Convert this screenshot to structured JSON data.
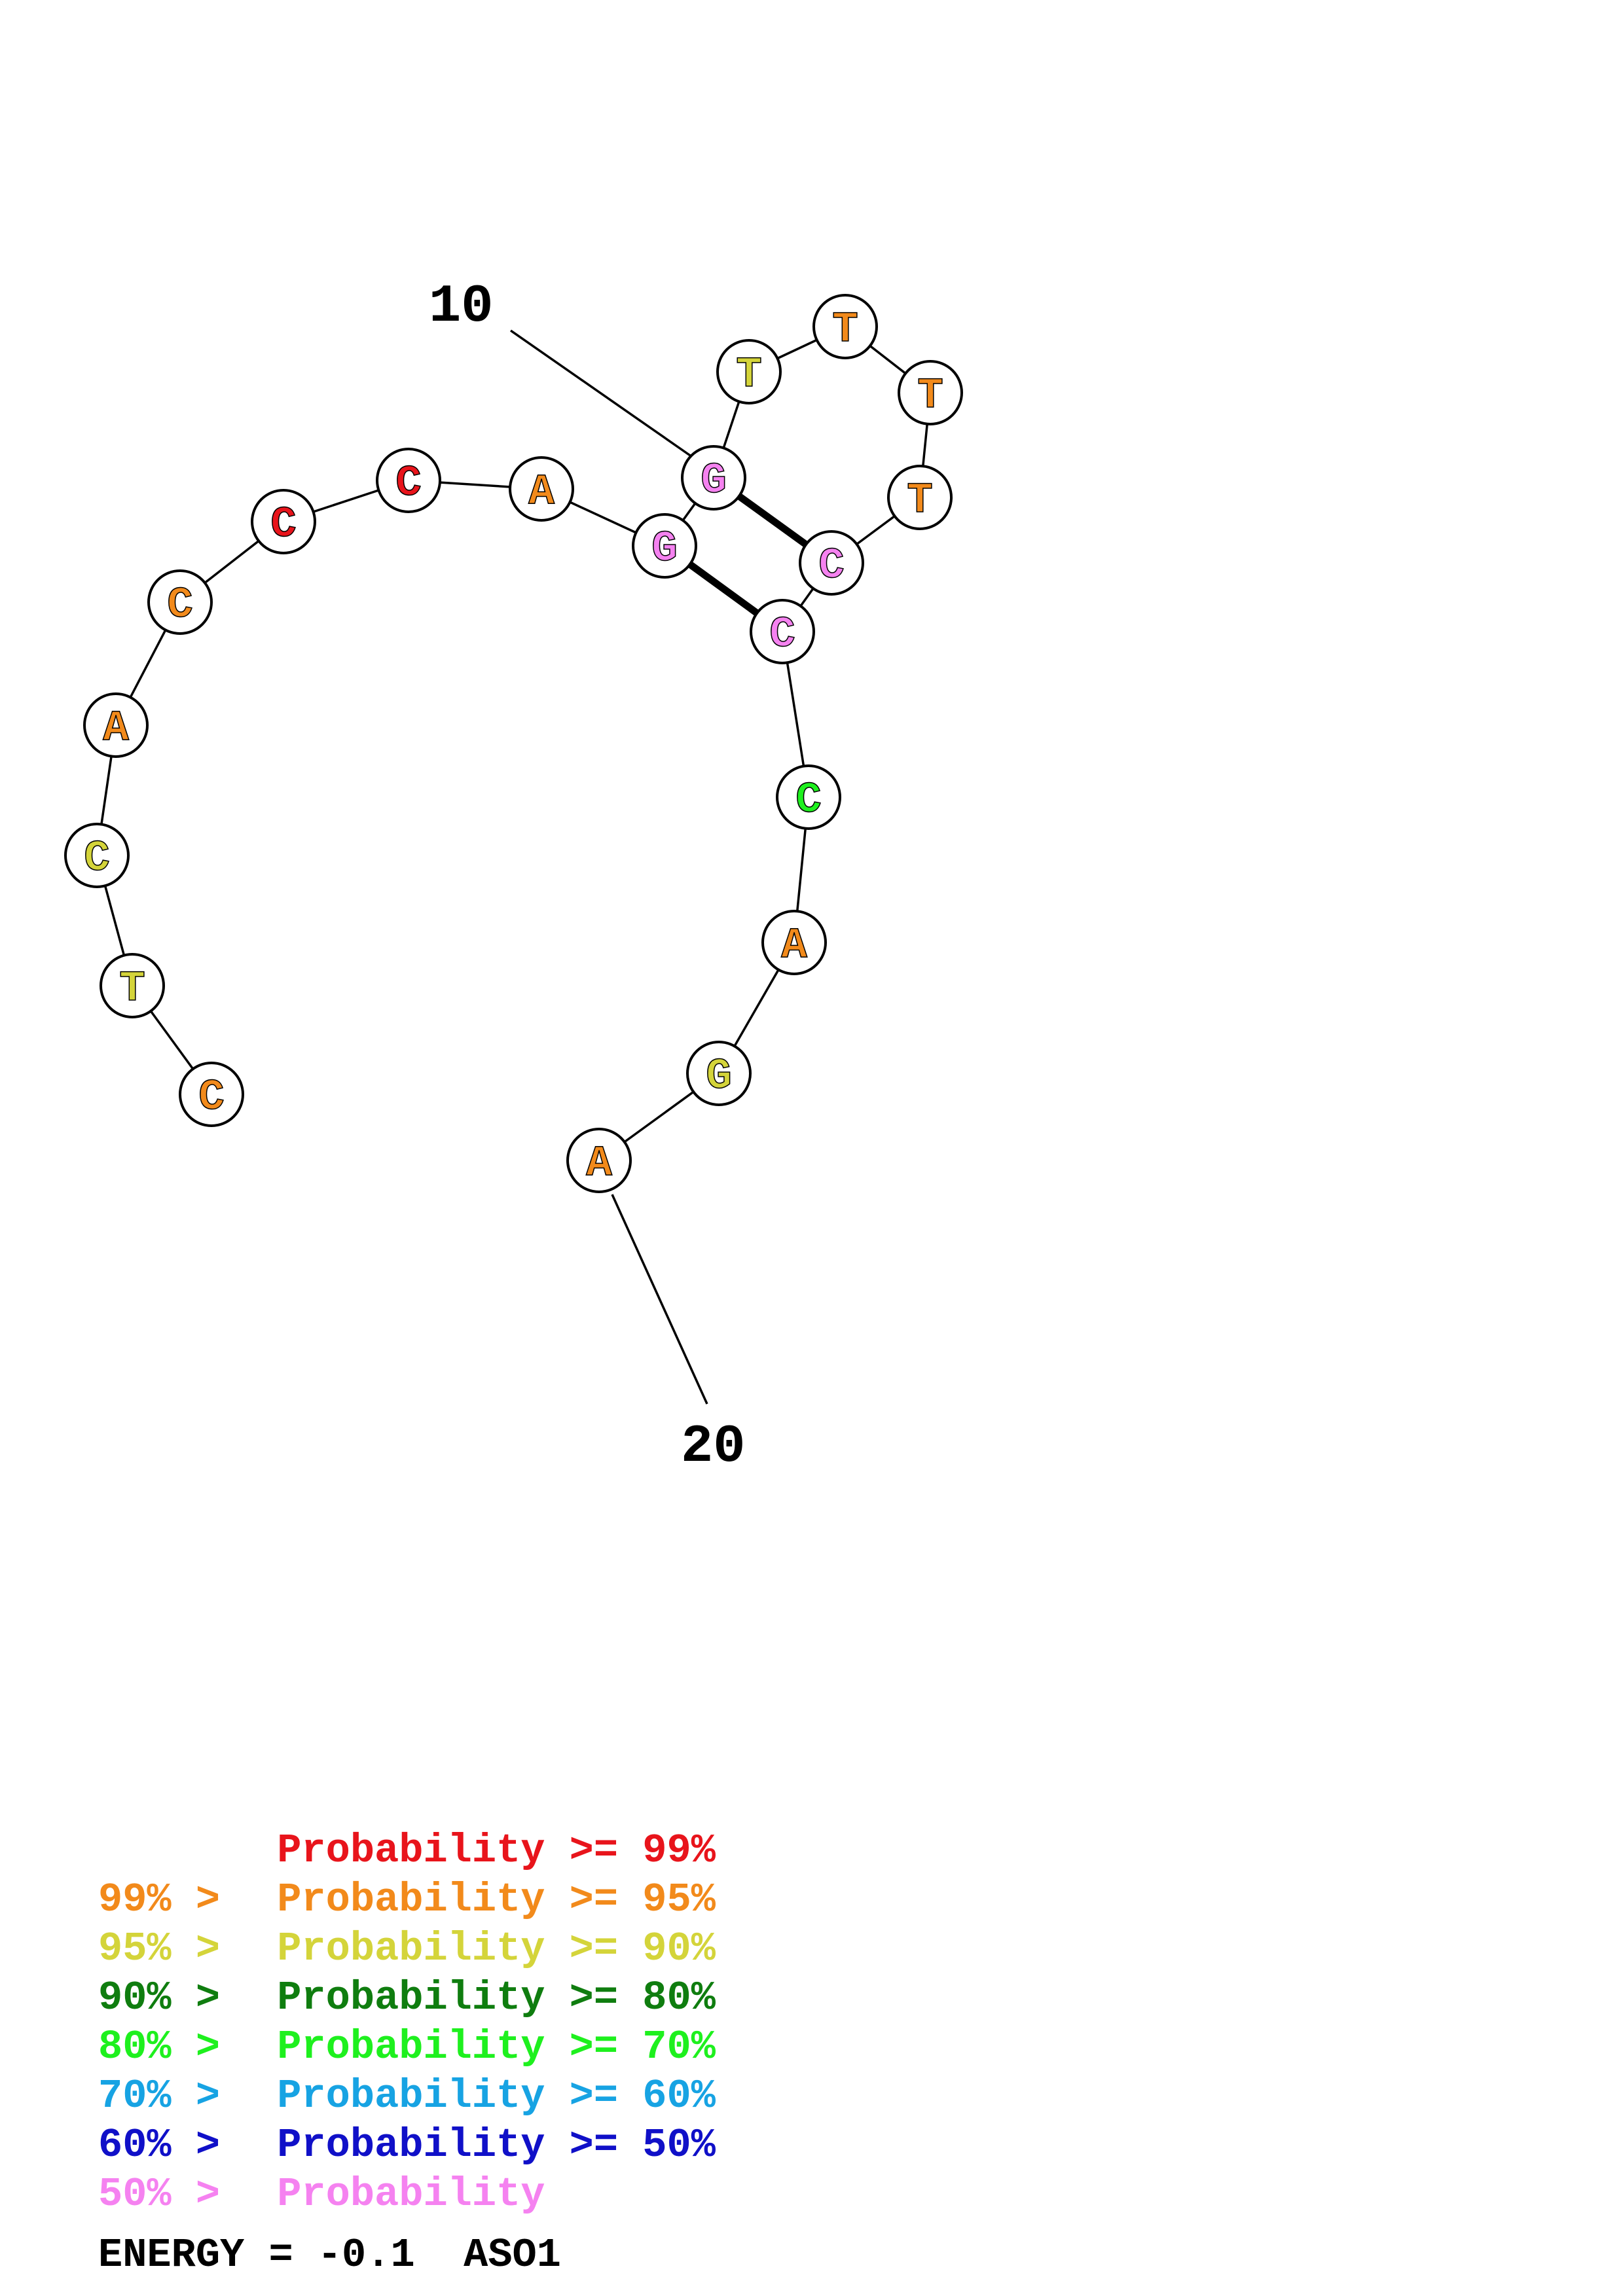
{
  "structure": {
    "sequence_name": "ASO1",
    "nucleotides": [
      {
        "n": 1,
        "base": "C",
        "color": "#f28a1b"
      },
      {
        "n": 2,
        "base": "T",
        "color": "#d4d43a"
      },
      {
        "n": 3,
        "base": "C",
        "color": "#d4d43a"
      },
      {
        "n": 4,
        "base": "A",
        "color": "#f28a1b"
      },
      {
        "n": 5,
        "base": "C",
        "color": "#f28a1b"
      },
      {
        "n": 6,
        "base": "C",
        "color": "#e8141b"
      },
      {
        "n": 7,
        "base": "C",
        "color": "#e8141b"
      },
      {
        "n": 8,
        "base": "A",
        "color": "#f28a1b"
      },
      {
        "n": 9,
        "base": "G",
        "color": "#f582f0"
      },
      {
        "n": 10,
        "base": "G",
        "color": "#f582f0"
      },
      {
        "n": 11,
        "base": "T",
        "color": "#d4d43a"
      },
      {
        "n": 12,
        "base": "T",
        "color": "#f28a1b"
      },
      {
        "n": 13,
        "base": "T",
        "color": "#f28a1b"
      },
      {
        "n": 14,
        "base": "T",
        "color": "#f28a1b"
      },
      {
        "n": 15,
        "base": "C",
        "color": "#f582f0"
      },
      {
        "n": 16,
        "base": "C",
        "color": "#f582f0"
      },
      {
        "n": 17,
        "base": "C",
        "color": "#1ef01e"
      },
      {
        "n": 18,
        "base": "A",
        "color": "#f28a1b"
      },
      {
        "n": 19,
        "base": "G",
        "color": "#d4d43a"
      },
      {
        "n": 20,
        "base": "A",
        "color": "#f28a1b"
      }
    ],
    "base_pairs": [
      [
        9,
        16
      ],
      [
        10,
        15
      ]
    ],
    "index_labels": [
      {
        "n": 10,
        "text": "10"
      },
      {
        "n": 20,
        "text": "20"
      }
    ]
  },
  "legend": [
    {
      "left": "",
      "right": "Probability >= 99%",
      "color": "#e8141b"
    },
    {
      "left": "99% ",
      "right": "Probability >= 95%",
      "color": "#f28a1b"
    },
    {
      "left": "95% ",
      "right": "Probability >= 90%",
      "color": "#d4d43a"
    },
    {
      "left": "90% ",
      "right": "Probability >= 80%",
      "color": "#0f7d0f"
    },
    {
      "left": "80% ",
      "right": "Probability >= 70%",
      "color": "#1ef01e"
    },
    {
      "left": "70% ",
      "right": "Probability >= 60%",
      "color": "#17a3e3"
    },
    {
      "left": "60% ",
      "right": "Probability >= 50%",
      "color": "#1010c8"
    },
    {
      "left": "50% ",
      "right": "Probability",
      "color": "#f582f0"
    }
  ],
  "energy": {
    "label": "ENERGY = -0.1",
    "name": "ASO1"
  }
}
